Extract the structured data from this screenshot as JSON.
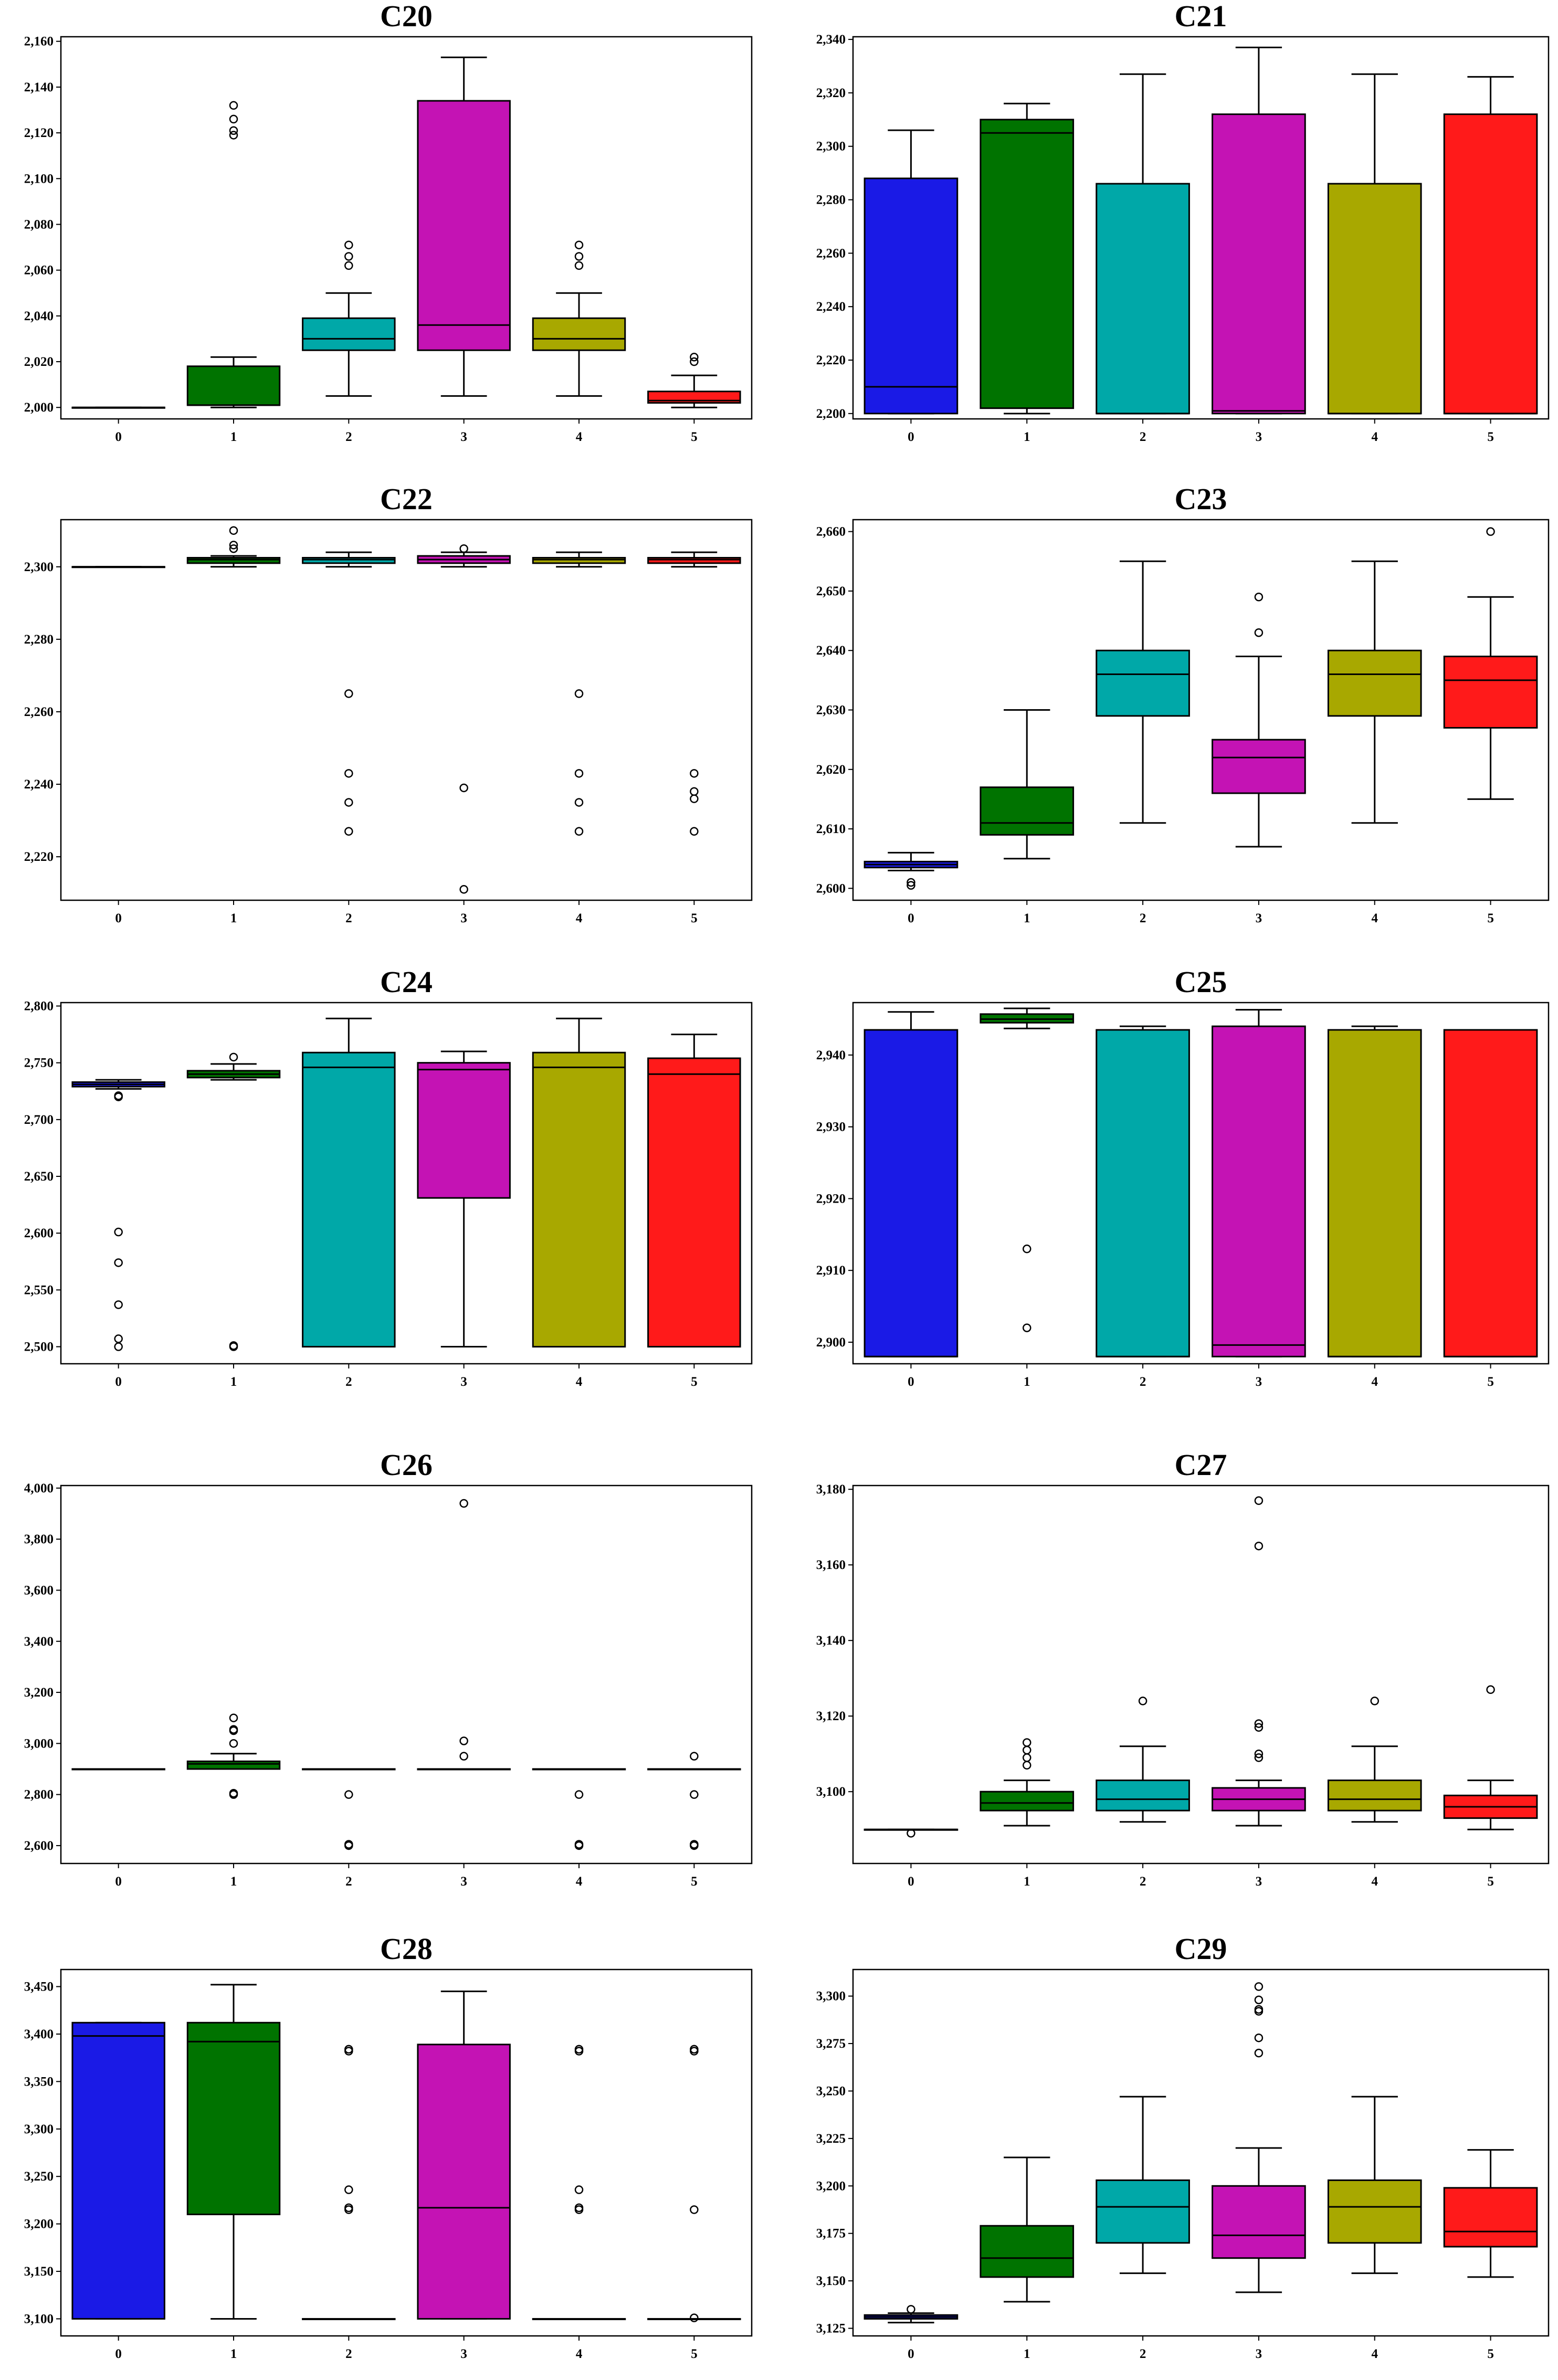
{
  "figure": {
    "background": "#ffffff",
    "edge_color": "#000000"
  },
  "palette": [
    "#1a1ae6",
    "#007300",
    "#00a8a8",
    "#c413b4",
    "#a8a800",
    "#ff1a1a"
  ],
  "chart_data": [
    {
      "type": "box",
      "title": "C20",
      "categories": [
        "0",
        "1",
        "2",
        "3",
        "4",
        "5"
      ],
      "ylim": [
        1995,
        2162
      ],
      "yticks": [
        2000,
        2020,
        2040,
        2060,
        2080,
        2100,
        2120,
        2140,
        2160
      ],
      "yticklabels": [
        "2,000",
        "2,020",
        "2,040",
        "2,060",
        "2,080",
        "2,100",
        "2,120",
        "2,140",
        "2,160"
      ],
      "boxes": [
        {
          "whislo": 2000,
          "q1": 2000,
          "med": 2000,
          "q3": 2000,
          "whishi": 2000,
          "fliers": []
        },
        {
          "whislo": 2000,
          "q1": 2001,
          "med": 2001,
          "q3": 2018,
          "whishi": 2022,
          "fliers": [
            2119,
            2121,
            2126,
            2132
          ]
        },
        {
          "whislo": 2005,
          "q1": 2025,
          "med": 2030,
          "q3": 2039,
          "whishi": 2050,
          "fliers": [
            2062,
            2066,
            2071
          ]
        },
        {
          "whislo": 2005,
          "q1": 2025,
          "med": 2036,
          "q3": 2134,
          "whishi": 2153,
          "fliers": []
        },
        {
          "whislo": 2005,
          "q1": 2025,
          "med": 2030,
          "q3": 2039,
          "whishi": 2050,
          "fliers": [
            2062,
            2066,
            2071
          ]
        },
        {
          "whislo": 2000,
          "q1": 2002,
          "med": 2003,
          "q3": 2007,
          "whishi": 2014,
          "fliers": [
            2020,
            2022
          ]
        }
      ]
    },
    {
      "type": "box",
      "title": "C21",
      "categories": [
        "0",
        "1",
        "2",
        "3",
        "4",
        "5"
      ],
      "ylim": [
        2198,
        2341
      ],
      "yticks": [
        2200,
        2220,
        2240,
        2260,
        2280,
        2300,
        2320,
        2340
      ],
      "yticklabels": [
        "2,200",
        "2,220",
        "2,240",
        "2,260",
        "2,280",
        "2,300",
        "2,320",
        "2,340"
      ],
      "boxes": [
        {
          "whislo": 2200,
          "q1": 2200,
          "med": 2210,
          "q3": 2288,
          "whishi": 2306,
          "fliers": []
        },
        {
          "whislo": 2200,
          "q1": 2202,
          "med": 2305,
          "q3": 2310,
          "whishi": 2316,
          "fliers": []
        },
        {
          "whislo": 2200,
          "q1": 2200,
          "med": 2200,
          "q3": 2286,
          "whishi": 2327,
          "fliers": []
        },
        {
          "whislo": 2200,
          "q1": 2200,
          "med": 2201,
          "q3": 2312,
          "whishi": 2337,
          "fliers": []
        },
        {
          "whislo": 2200,
          "q1": 2200,
          "med": 2200,
          "q3": 2286,
          "whishi": 2327,
          "fliers": []
        },
        {
          "whislo": 2200,
          "q1": 2200,
          "med": 2200,
          "q3": 2312,
          "whishi": 2326,
          "fliers": []
        }
      ]
    },
    {
      "type": "box",
      "title": "C22",
      "categories": [
        "0",
        "1",
        "2",
        "3",
        "4",
        "5"
      ],
      "ylim": [
        2208,
        2313
      ],
      "yticks": [
        2220,
        2240,
        2260,
        2280,
        2300
      ],
      "yticklabels": [
        "2,220",
        "2,240",
        "2,260",
        "2,280",
        "2,300"
      ],
      "boxes": [
        {
          "whislo": 2300,
          "q1": 2300,
          "med": 2300,
          "q3": 2300,
          "whishi": 2300,
          "fliers": []
        },
        {
          "whislo": 2300,
          "q1": 2301,
          "med": 2302,
          "q3": 2302.5,
          "whishi": 2303,
          "fliers": [
            2305,
            2306,
            2310
          ]
        },
        {
          "whislo": 2300,
          "q1": 2301,
          "med": 2302,
          "q3": 2302.5,
          "whishi": 2304,
          "fliers": [
            2227,
            2235,
            2243,
            2265
          ]
        },
        {
          "whislo": 2300,
          "q1": 2301,
          "med": 2302,
          "q3": 2303,
          "whishi": 2304,
          "fliers": [
            2211,
            2239,
            2305
          ]
        },
        {
          "whislo": 2300,
          "q1": 2301,
          "med": 2302,
          "q3": 2302.5,
          "whishi": 2304,
          "fliers": [
            2227,
            2235,
            2243,
            2265
          ]
        },
        {
          "whislo": 2300,
          "q1": 2301,
          "med": 2302,
          "q3": 2302.5,
          "whishi": 2304,
          "fliers": [
            2227,
            2236,
            2238,
            2243
          ]
        }
      ]
    },
    {
      "type": "box",
      "title": "C23",
      "categories": [
        "0",
        "1",
        "2",
        "3",
        "4",
        "5"
      ],
      "ylim": [
        2598,
        2662
      ],
      "yticks": [
        2600,
        2610,
        2620,
        2630,
        2640,
        2650,
        2660
      ],
      "yticklabels": [
        "2,600",
        "2,610",
        "2,620",
        "2,630",
        "2,640",
        "2,650",
        "2,660"
      ],
      "boxes": [
        {
          "whislo": 2603,
          "q1": 2603.5,
          "med": 2604,
          "q3": 2604.5,
          "whishi": 2606,
          "fliers": [
            2600.5,
            2601
          ]
        },
        {
          "whislo": 2605,
          "q1": 2609,
          "med": 2611,
          "q3": 2617,
          "whishi": 2630,
          "fliers": []
        },
        {
          "whislo": 2611,
          "q1": 2629,
          "med": 2636,
          "q3": 2640,
          "whishi": 2655,
          "fliers": []
        },
        {
          "whislo": 2607,
          "q1": 2616,
          "med": 2622,
          "q3": 2625,
          "whishi": 2639,
          "fliers": [
            2643,
            2649
          ]
        },
        {
          "whislo": 2611,
          "q1": 2629,
          "med": 2636,
          "q3": 2640,
          "whishi": 2655,
          "fliers": []
        },
        {
          "whislo": 2615,
          "q1": 2627,
          "med": 2635,
          "q3": 2639,
          "whishi": 2649,
          "fliers": [
            2660
          ]
        }
      ]
    },
    {
      "type": "box",
      "title": "C24",
      "categories": [
        "0",
        "1",
        "2",
        "3",
        "4",
        "5"
      ],
      "ylim": [
        2485,
        2803
      ],
      "yticks": [
        2500,
        2550,
        2600,
        2650,
        2700,
        2750,
        2800
      ],
      "yticklabels": [
        "2,500",
        "2,550",
        "2,600",
        "2,650",
        "2,700",
        "2,750",
        "2,800"
      ],
      "boxes": [
        {
          "whislo": 2727,
          "q1": 2729,
          "med": 2731,
          "q3": 2733,
          "whishi": 2735,
          "fliers": [
            2500,
            2507,
            2537,
            2574,
            2601,
            2720,
            2721
          ]
        },
        {
          "whislo": 2735,
          "q1": 2737,
          "med": 2740,
          "q3": 2743,
          "whishi": 2749,
          "fliers": [
            2500,
            2501,
            2755
          ]
        },
        {
          "whislo": 2500,
          "q1": 2500,
          "med": 2746,
          "q3": 2759,
          "whishi": 2789,
          "fliers": []
        },
        {
          "whislo": 2500,
          "q1": 2631,
          "med": 2744,
          "q3": 2750,
          "whishi": 2760,
          "fliers": []
        },
        {
          "whislo": 2500,
          "q1": 2500,
          "med": 2746,
          "q3": 2759,
          "whishi": 2789,
          "fliers": []
        },
        {
          "whislo": 2500,
          "q1": 2500,
          "med": 2740,
          "q3": 2754,
          "whishi": 2775,
          "fliers": []
        }
      ]
    },
    {
      "type": "box",
      "title": "C25",
      "categories": [
        "0",
        "1",
        "2",
        "3",
        "4",
        "5"
      ],
      "ylim": [
        2897,
        2947.3
      ],
      "yticks": [
        2900,
        2910,
        2920,
        2930,
        2940
      ],
      "yticklabels": [
        "2,900",
        "2,910",
        "2,920",
        "2,930",
        "2,940"
      ],
      "boxes": [
        {
          "whislo": 2898,
          "q1": 2898,
          "med": 2898,
          "q3": 2943.5,
          "whishi": 2946,
          "fliers": []
        },
        {
          "whislo": 2943.7,
          "q1": 2944.5,
          "med": 2945,
          "q3": 2945.7,
          "whishi": 2946.5,
          "fliers": [
            2902,
            2913
          ]
        },
        {
          "whislo": 2898,
          "q1": 2898,
          "med": 2898,
          "q3": 2943.5,
          "whishi": 2944,
          "fliers": []
        },
        {
          "whislo": 2898,
          "q1": 2898,
          "med": 2899.6,
          "q3": 2944,
          "whishi": 2946.3,
          "fliers": []
        },
        {
          "whislo": 2898,
          "q1": 2898,
          "med": 2898,
          "q3": 2943.5,
          "whishi": 2944,
          "fliers": []
        },
        {
          "whislo": 2898,
          "q1": 2898,
          "med": 2898,
          "q3": 2943.5,
          "whishi": 2943.5,
          "fliers": []
        }
      ]
    },
    {
      "type": "box",
      "title": "C26",
      "categories": [
        "0",
        "1",
        "2",
        "3",
        "4",
        "5"
      ],
      "ylim": [
        2530,
        4010
      ],
      "yticks": [
        2600,
        2800,
        3000,
        3200,
        3400,
        3600,
        3800,
        4000
      ],
      "yticklabels": [
        "2,600",
        "2,800",
        "3,000",
        "3,200",
        "3,400",
        "3,600",
        "3,800",
        "4,000"
      ],
      "boxes": [
        {
          "whislo": 2900,
          "q1": 2900,
          "med": 2900,
          "q3": 2900,
          "whishi": 2900,
          "fliers": []
        },
        {
          "whislo": 2900,
          "q1": 2900,
          "med": 2920,
          "q3": 2930,
          "whishi": 2960,
          "fliers": [
            2800,
            2805,
            3000,
            3050,
            3055,
            3100
          ]
        },
        {
          "whislo": 2900,
          "q1": 2900,
          "med": 2900,
          "q3": 2900,
          "whishi": 2900,
          "fliers": [
            2600,
            2605,
            2800
          ]
        },
        {
          "whislo": 2900,
          "q1": 2900,
          "med": 2900,
          "q3": 2900,
          "whishi": 2900,
          "fliers": [
            2950,
            3010,
            3940
          ]
        },
        {
          "whislo": 2900,
          "q1": 2900,
          "med": 2900,
          "q3": 2900,
          "whishi": 2900,
          "fliers": [
            2600,
            2605,
            2800
          ]
        },
        {
          "whislo": 2900,
          "q1": 2900,
          "med": 2900,
          "q3": 2900,
          "whishi": 2900,
          "fliers": [
            2600,
            2605,
            2800,
            2950
          ]
        }
      ]
    },
    {
      "type": "box",
      "title": "C27",
      "categories": [
        "0",
        "1",
        "2",
        "3",
        "4",
        "5"
      ],
      "ylim": [
        3081,
        3181
      ],
      "yticks": [
        3100,
        3120,
        3140,
        3160,
        3180
      ],
      "yticklabels": [
        "3,100",
        "3,120",
        "3,140",
        "3,160",
        "3,180"
      ],
      "boxes": [
        {
          "whislo": 3090,
          "q1": 3090,
          "med": 3090,
          "q3": 3090,
          "whishi": 3090,
          "fliers": [
            3089
          ]
        },
        {
          "whislo": 3091,
          "q1": 3095,
          "med": 3097,
          "q3": 3100,
          "whishi": 3103,
          "fliers": [
            3107,
            3109,
            3111,
            3113
          ]
        },
        {
          "whislo": 3092,
          "q1": 3095,
          "med": 3098,
          "q3": 3103,
          "whishi": 3112,
          "fliers": [
            3124
          ]
        },
        {
          "whislo": 3091,
          "q1": 3095,
          "med": 3098,
          "q3": 3101,
          "whishi": 3103,
          "fliers": [
            3109,
            3110,
            3117,
            3118,
            3165,
            3177
          ]
        },
        {
          "whislo": 3092,
          "q1": 3095,
          "med": 3098,
          "q3": 3103,
          "whishi": 3112,
          "fliers": [
            3124
          ]
        },
        {
          "whislo": 3090,
          "q1": 3093,
          "med": 3096,
          "q3": 3099,
          "whishi": 3103,
          "fliers": [
            3127
          ]
        }
      ]
    },
    {
      "type": "box",
      "title": "C28",
      "categories": [
        "0",
        "1",
        "2",
        "3",
        "4",
        "5"
      ],
      "ylim": [
        3082,
        3468
      ],
      "yticks": [
        3100,
        3150,
        3200,
        3250,
        3300,
        3350,
        3400,
        3450
      ],
      "yticklabels": [
        "3,100",
        "3,150",
        "3,200",
        "3,250",
        "3,300",
        "3,350",
        "3,400",
        "3,450"
      ],
      "boxes": [
        {
          "whislo": 3100,
          "q1": 3100,
          "med": 3398,
          "q3": 3412,
          "whishi": 3412,
          "fliers": []
        },
        {
          "whislo": 3100,
          "q1": 3210,
          "med": 3392,
          "q3": 3412,
          "whishi": 3452,
          "fliers": []
        },
        {
          "whislo": 3100,
          "q1": 3100,
          "med": 3100,
          "q3": 3100,
          "whishi": 3100,
          "fliers": [
            3215,
            3217,
            3236,
            3382,
            3384
          ]
        },
        {
          "whislo": 3100,
          "q1": 3100,
          "med": 3217,
          "q3": 3389,
          "whishi": 3445,
          "fliers": []
        },
        {
          "whislo": 3100,
          "q1": 3100,
          "med": 3100,
          "q3": 3100,
          "whishi": 3100,
          "fliers": [
            3215,
            3217,
            3236,
            3382,
            3384
          ]
        },
        {
          "whislo": 3100,
          "q1": 3100,
          "med": 3100,
          "q3": 3100,
          "whishi": 3100,
          "fliers": [
            3101,
            3215,
            3382,
            3384
          ]
        }
      ]
    },
    {
      "type": "box",
      "title": "C29",
      "categories": [
        "0",
        "1",
        "2",
        "3",
        "4",
        "5"
      ],
      "ylim": [
        3121,
        3314
      ],
      "yticks": [
        3125,
        3150,
        3175,
        3200,
        3225,
        3250,
        3275,
        3300
      ],
      "yticklabels": [
        "3,125",
        "3,150",
        "3,175",
        "3,200",
        "3,225",
        "3,250",
        "3,275",
        "3,300"
      ],
      "boxes": [
        {
          "whislo": 3128,
          "q1": 3130,
          "med": 3131,
          "q3": 3132,
          "whishi": 3133,
          "fliers": [
            3135
          ]
        },
        {
          "whislo": 3139,
          "q1": 3152,
          "med": 3162,
          "q3": 3179,
          "whishi": 3215,
          "fliers": []
        },
        {
          "whislo": 3154,
          "q1": 3170,
          "med": 3189,
          "q3": 3203,
          "whishi": 3247,
          "fliers": []
        },
        {
          "whislo": 3144,
          "q1": 3162,
          "med": 3174,
          "q3": 3200,
          "whishi": 3220,
          "fliers": [
            3270,
            3278,
            3292,
            3293,
            3298,
            3305
          ]
        },
        {
          "whislo": 3154,
          "q1": 3170,
          "med": 3189,
          "q3": 3203,
          "whishi": 3247,
          "fliers": []
        },
        {
          "whislo": 3152,
          "q1": 3168,
          "med": 3176,
          "q3": 3199,
          "whishi": 3219,
          "fliers": []
        }
      ]
    }
  ]
}
